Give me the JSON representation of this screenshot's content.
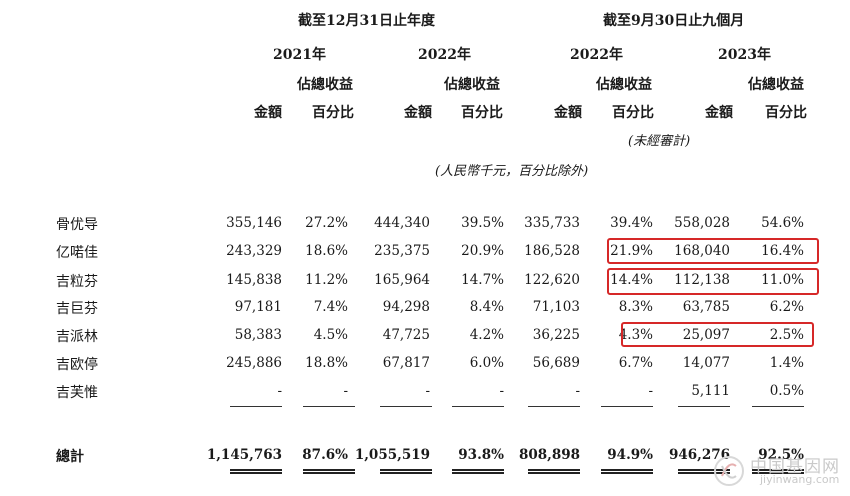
{
  "header": {
    "group1": "截至12月31日止年度",
    "group2": "截至9月30日止九個月",
    "years": [
      "2021年",
      "2022年",
      "2022年",
      "2023年"
    ],
    "share_label_line1": "佔總收益",
    "share_label_line2": "百分比",
    "amount_label": "金額",
    "unaudited": "(未經審計)",
    "unit_note": "(人民幣千元，百分比除外)"
  },
  "rows": [
    {
      "name": "骨优导",
      "v": [
        "355,146",
        "27.2%",
        "444,340",
        "39.5%",
        "335,733",
        "39.4%",
        "558,028",
        "54.6%"
      ]
    },
    {
      "name": "亿喏佳",
      "v": [
        "243,329",
        "18.6%",
        "235,375",
        "20.9%",
        "186,528",
        "21.9%",
        "168,040",
        "16.4%"
      ]
    },
    {
      "name": "吉粒芬",
      "v": [
        "145,838",
        "11.2%",
        "165,964",
        "14.7%",
        "122,620",
        "14.4%",
        "112,138",
        "11.0%"
      ]
    },
    {
      "name": "吉巨芬",
      "v": [
        "97,181",
        "7.4%",
        "94,298",
        "8.4%",
        "71,103",
        "8.3%",
        "63,785",
        "6.2%"
      ]
    },
    {
      "name": "吉派林",
      "v": [
        "58,383",
        "4.5%",
        "47,725",
        "4.2%",
        "36,225",
        "4.3%",
        "25,097",
        "2.5%"
      ]
    },
    {
      "name": "吉欧停",
      "v": [
        "245,886",
        "18.8%",
        "67,817",
        "6.0%",
        "56,689",
        "6.7%",
        "14,077",
        "1.4%"
      ]
    },
    {
      "name": "吉芙惟",
      "v": [
        "-",
        "-",
        "-",
        "-",
        "-",
        "-",
        "5,111",
        "0.5%"
      ]
    }
  ],
  "total": {
    "name": "總計",
    "v": [
      "1,145,763",
      "87.6%",
      "1,055,519",
      "93.8%",
      "808,898",
      "94.9%",
      "946,276",
      "92.5%"
    ]
  },
  "watermark": {
    "cn": "中国基因网",
    "en": "jiyinwang.com"
  },
  "colors": {
    "highlight": "#d62828",
    "text": "#1a1a1a"
  }
}
